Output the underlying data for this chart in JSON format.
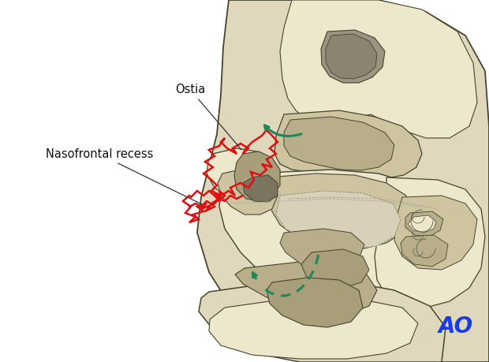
{
  "background_color": "#ffffff",
  "label_ostia": "Ostia",
  "label_nasofrontal": "Nasofrontal recess",
  "label_ao": "AO",
  "ao_color": "#1a3be8",
  "red_color": "#dd1111",
  "green_color": "#1a8a5a",
  "bone_lightest": "#ede7cc",
  "bone_light": "#e0d8bc",
  "bone_mid": "#cec4a0",
  "bone_dark": "#b8ae8a",
  "bone_darker": "#a89e7a",
  "bone_gray": "#9a9480",
  "outline_color": "#444430",
  "outline_light": "#666650",
  "figsize": [
    6.2,
    4.59
  ],
  "dpi": 100
}
